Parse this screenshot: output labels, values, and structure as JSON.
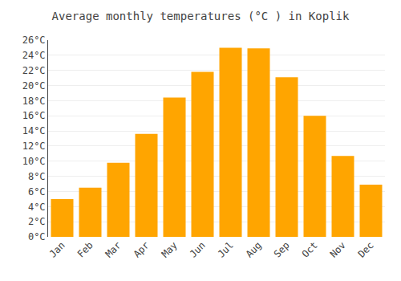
{
  "chart_data": {
    "type": "bar",
    "title": "Average monthly temperatures (°C ) in Koplik",
    "categories": [
      "Jan",
      "Feb",
      "Mar",
      "Apr",
      "May",
      "Jun",
      "Jul",
      "Aug",
      "Sep",
      "Oct",
      "Nov",
      "Dec"
    ],
    "values": [
      5.0,
      6.5,
      9.8,
      13.6,
      18.4,
      21.8,
      25.0,
      24.9,
      21.1,
      16.0,
      10.7,
      6.9
    ],
    "color": "#FFA500",
    "ylim": [
      0,
      26
    ],
    "yticks": [
      {
        "value": 0,
        "label": "0°C"
      },
      {
        "value": 2,
        "label": "2°C"
      },
      {
        "value": 4,
        "label": "4°C"
      },
      {
        "value": 6,
        "label": "6°C"
      },
      {
        "value": 8,
        "label": "8°C"
      },
      {
        "value": 10,
        "label": "10°C"
      },
      {
        "value": 12,
        "label": "12°C"
      },
      {
        "value": 14,
        "label": "14°C"
      },
      {
        "value": 16,
        "label": "16°C"
      },
      {
        "value": 18,
        "label": "18°C"
      },
      {
        "value": 20,
        "label": "20°C"
      },
      {
        "value": 22,
        "label": "22°C"
      },
      {
        "value": 24,
        "label": "24°C"
      },
      {
        "value": 26,
        "label": "26°C"
      }
    ],
    "grid": true
  }
}
